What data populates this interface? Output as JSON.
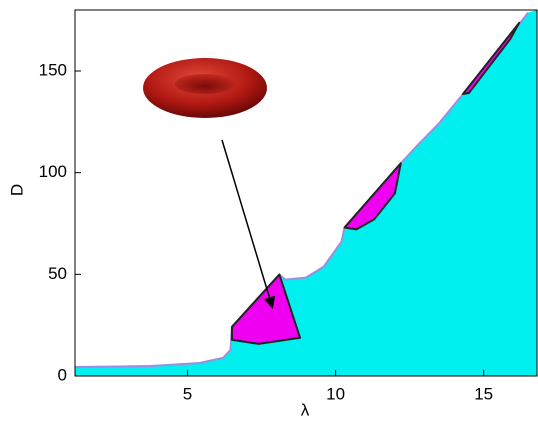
{
  "chart_data": {
    "type": "area",
    "xlabel": "λ",
    "ylabel": "D",
    "xlim": [
      1.2,
      16.8
    ],
    "ylim": [
      0,
      180
    ],
    "xticks": [
      5,
      10,
      15
    ],
    "yticks": [
      0,
      50,
      100,
      150
    ],
    "color": "#00f0f0",
    "line_color": "#9a8fe0",
    "x": [
      1.2,
      3.75,
      5.4,
      6.2,
      6.45,
      6.5,
      8.1,
      8.3,
      9.0,
      9.6,
      10.2,
      10.3,
      12.2,
      12.8,
      13.5,
      14.3,
      15.5,
      16.5
    ],
    "values": [
      4.4,
      4.9,
      6.4,
      8.9,
      12.8,
      24.2,
      49.9,
      47.4,
      48.4,
      53.8,
      66.1,
      73.0,
      104.6,
      114.0,
      124.4,
      138.7,
      159.9,
      178.7
    ],
    "regions": [
      {
        "color": "#f000f0",
        "x": [
          6.5,
          8.1,
          8.8,
          7.4,
          6.5
        ],
        "values": [
          24.2,
          49.9,
          18.8,
          15.8,
          17.8
        ]
      },
      {
        "color": "#f000f0",
        "x": [
          10.3,
          12.2,
          12.0,
          11.3,
          10.7
        ],
        "values": [
          73.0,
          104.6,
          89.8,
          77.0,
          72.1
        ]
      },
      {
        "color": "#f000f0",
        "x": [
          14.3,
          16.2,
          15.9,
          14.5
        ],
        "values": [
          138.7,
          173.7,
          165.8,
          139.2
        ]
      }
    ]
  }
}
